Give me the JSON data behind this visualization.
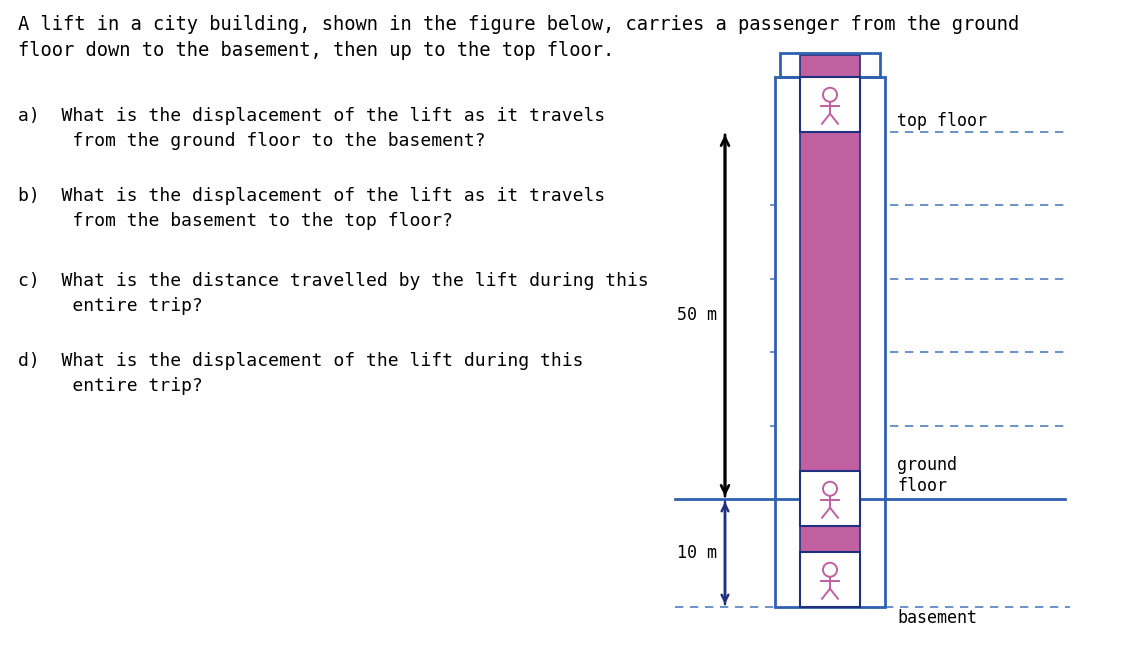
{
  "title_text": "A lift in a city building, shown in the figure below, carries a passenger from the ground\nfloor down to the basement, then up to the top floor.",
  "questions": [
    "a)  What is the displacement of the lift as it travels\n     from the ground floor to the basement?",
    "b)  What is the displacement of the lift as it travels\n     from the basement to the top floor?",
    "c)  What is the distance travelled by the lift during this\n     entire trip?",
    "d)  What is the displacement of the lift during this\n     entire trip?"
  ],
  "building_color": "#3060B0",
  "shaft_fill": "#C060A0",
  "lift_border": "#203080",
  "ground_line_color": "#3060B0",
  "arrow_color": "#000000",
  "dim_arrow_color": "#203080",
  "dashed_color": "#5080C0",
  "person_color": "#C060A0",
  "top_floor_label": "top floor",
  "ground_floor_label": "ground\nfloor",
  "basement_label": "basement",
  "label_50m": "50 m",
  "label_10m": "10 m",
  "bg_color": "#FFFFFF",
  "text_color": "#000000",
  "font_family": "DejaVu Sans Mono"
}
